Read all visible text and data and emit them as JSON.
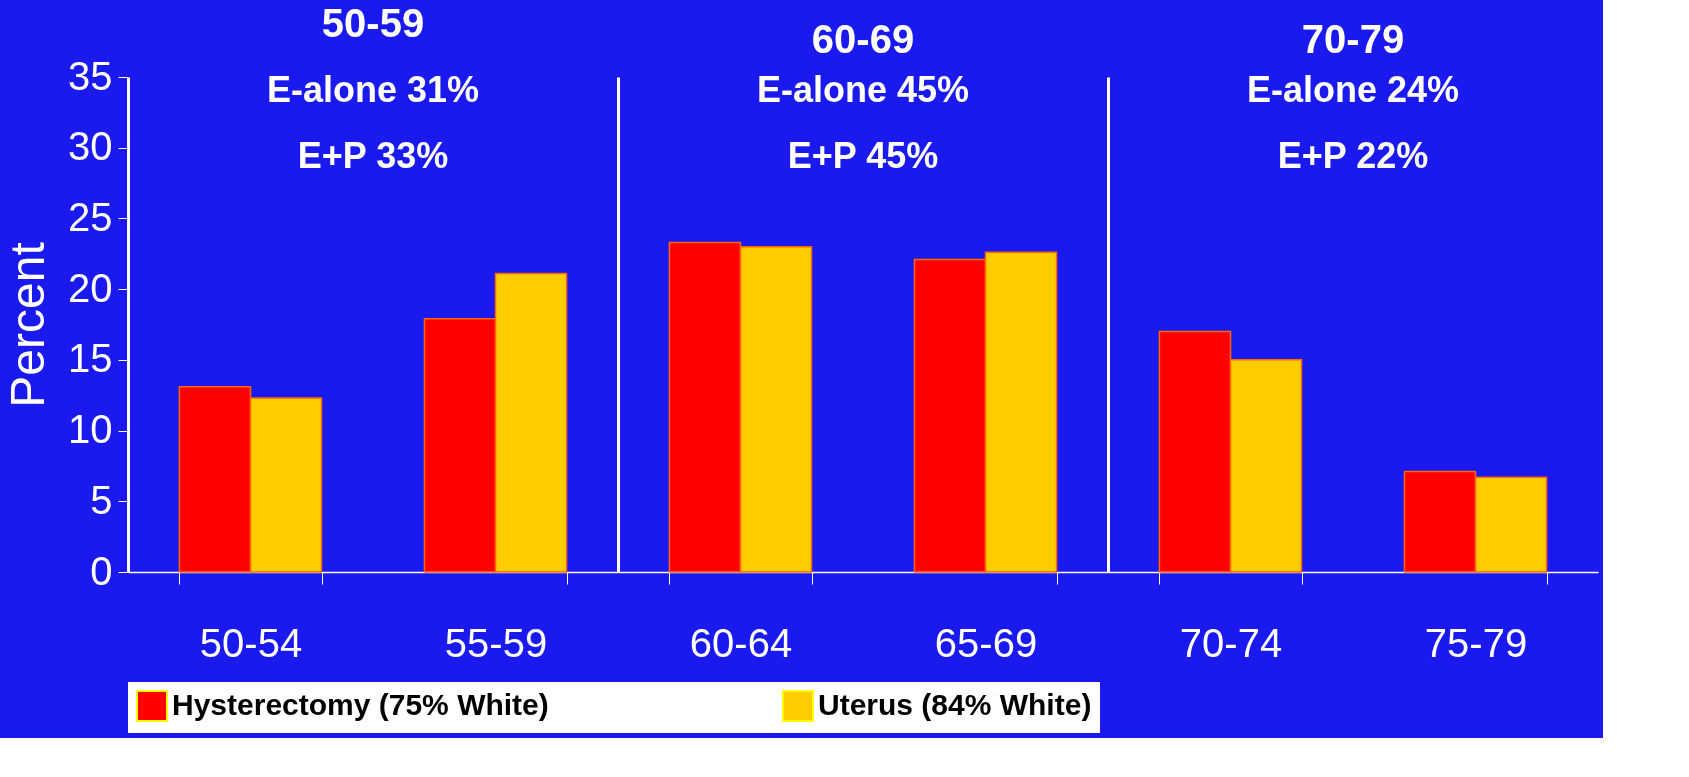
{
  "chart_data": [
    {
      "type": "bar",
      "title": "50-59",
      "annotations": [
        "E-alone 31%",
        "E+P 33%"
      ],
      "ylabel": "Percent",
      "categories": [
        "50-54",
        "55-59"
      ],
      "ylim": [
        0,
        35
      ],
      "yticks": [
        0,
        5,
        10,
        15,
        20,
        25,
        30,
        35
      ],
      "grid": false,
      "legend": "bottom",
      "series": [
        {
          "name": "Hysterectomy (75% White)",
          "color": "#ff0000",
          "values": [
            13.1,
            17.9
          ]
        },
        {
          "name": "Uterus (84% White)",
          "color": "#ffcc00",
          "values": [
            12.3,
            21.1
          ]
        }
      ]
    },
    {
      "type": "bar",
      "title": "60-69",
      "annotations": [
        "E-alone 45%",
        "E+P 45%"
      ],
      "categories": [
        "60-64",
        "65-69"
      ],
      "ylim": [
        0,
        35
      ],
      "yticks": [
        0,
        5,
        10,
        15,
        20,
        25,
        30,
        35
      ],
      "grid": false,
      "legend": "bottom",
      "tick_labels": "x",
      "series": [
        {
          "name": "Hysterectomy (75% White)",
          "color": "#ff0000",
          "values": [
            23.3,
            22.1
          ]
        },
        {
          "name": "Uterus (84% White)",
          "color": "#ffcc00",
          "values": [
            23.0,
            22.6
          ]
        }
      ]
    },
    {
      "type": "bar",
      "title": "70-79",
      "annotations": [
        "E-alone  24%",
        "E+P 22%"
      ],
      "categories": [
        "70-74",
        "75-79"
      ],
      "ylim": [
        0,
        35
      ],
      "yticks": [
        0,
        5,
        10,
        15,
        20,
        25,
        30,
        35
      ],
      "grid": false,
      "legend": "bottom",
      "tick_labels": "x",
      "series": [
        {
          "name": "Hysterectomy (75% White)",
          "color": "#ff0000",
          "values": [
            17.0,
            7.1
          ]
        },
        {
          "name": "Uterus (84% White)",
          "color": "#ffcc00",
          "values": [
            15.0,
            6.7
          ]
        }
      ]
    }
  ]
}
